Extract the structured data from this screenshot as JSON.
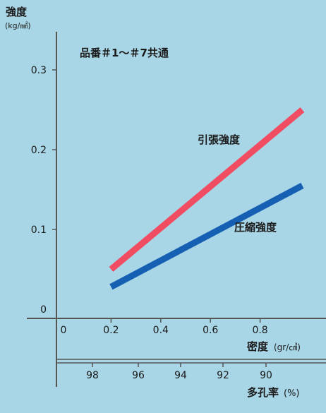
{
  "chart_data": {
    "type": "line",
    "note": "品番＃1〜＃7共通",
    "ylabel": "強度",
    "yunit": "(kg/㎟)",
    "xlabel": "密度",
    "xunit": "(gr/㎤)",
    "x2label": "多孔率",
    "x2unit": "(%)",
    "xlim": [
      0,
      1.0
    ],
    "ylim": [
      0,
      0.35
    ],
    "xticks": [
      "0",
      "0.2",
      "0.4",
      "0.6",
      "0.8"
    ],
    "yticks": [
      "0",
      "0.1",
      "0.2",
      "0.3"
    ],
    "x2ticks": [
      "98",
      "96",
      "94",
      "92",
      "90"
    ],
    "series": [
      {
        "name": "引張強度",
        "color": "#f04d63",
        "x": [
          0.2,
          0.97
        ],
        "y": [
          0.05,
          0.25
        ]
      },
      {
        "name": "圧縮強度",
        "color": "#1660b4",
        "x": [
          0.2,
          0.97
        ],
        "y": [
          0.028,
          0.155
        ]
      }
    ]
  }
}
